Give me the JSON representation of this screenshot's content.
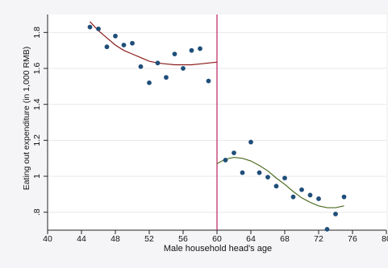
{
  "chart_data": {
    "type": "scatter",
    "title": "",
    "xlabel": "Male household head's age",
    "ylabel": "Eating out expenditure (in 1,000 RMB)",
    "xlim": [
      40,
      80
    ],
    "ylim": [
      0.7,
      1.9
    ],
    "xticks": [
      40,
      44,
      48,
      52,
      56,
      60,
      64,
      68,
      72,
      76,
      80
    ],
    "xtick_labels": [
      "40",
      "44",
      "48",
      "52",
      "56",
      "60",
      "64",
      "68",
      "72",
      "76",
      "80"
    ],
    "yticks": [
      0.8,
      1.0,
      1.2,
      1.4,
      1.6,
      1.8
    ],
    "ytick_labels": [
      ".8",
      "1",
      "1.2",
      "1.4",
      "1.6",
      "1.8"
    ],
    "grid": "horizontal",
    "cutoff": 60,
    "series": [
      {
        "kind": "points",
        "color": "#1f4e79",
        "points": [
          [
            45,
            1.83
          ],
          [
            46,
            1.82
          ],
          [
            47,
            1.72
          ],
          [
            48,
            1.78
          ],
          [
            49,
            1.73
          ],
          [
            50,
            1.74
          ],
          [
            51,
            1.61
          ],
          [
            52,
            1.52
          ],
          [
            53,
            1.63
          ],
          [
            54,
            1.55
          ],
          [
            55,
            1.68
          ],
          [
            56,
            1.6
          ],
          [
            57,
            1.7
          ],
          [
            58,
            1.71
          ],
          [
            59,
            1.53
          ],
          [
            61,
            1.09
          ],
          [
            62,
            1.13
          ],
          [
            63,
            1.02
          ],
          [
            64,
            1.19
          ],
          [
            65,
            1.02
          ],
          [
            66,
            0.995
          ],
          [
            67,
            0.945
          ],
          [
            68,
            0.99
          ],
          [
            69,
            0.885
          ],
          [
            70,
            0.925
          ],
          [
            71,
            0.895
          ],
          [
            72,
            0.875
          ],
          [
            73,
            0.705
          ],
          [
            74,
            0.79
          ],
          [
            75,
            0.885
          ]
        ]
      },
      {
        "kind": "fit",
        "color": "#8b1a1a",
        "points": [
          [
            45,
            1.86
          ],
          [
            46,
            1.81
          ],
          [
            47,
            1.77
          ],
          [
            48,
            1.73
          ],
          [
            49,
            1.7
          ],
          [
            50,
            1.68
          ],
          [
            51,
            1.66
          ],
          [
            52,
            1.64
          ],
          [
            53,
            1.63
          ],
          [
            54,
            1.625
          ],
          [
            55,
            1.62
          ],
          [
            56,
            1.62
          ],
          [
            57,
            1.62
          ],
          [
            58,
            1.625
          ],
          [
            59,
            1.63
          ],
          [
            60,
            1.635
          ]
        ]
      },
      {
        "kind": "fit",
        "color": "#4d6b1f",
        "points": [
          [
            60,
            1.07
          ],
          [
            61,
            1.095
          ],
          [
            62,
            1.105
          ],
          [
            63,
            1.1
          ],
          [
            64,
            1.085
          ],
          [
            65,
            1.06
          ],
          [
            66,
            1.03
          ],
          [
            67,
            0.99
          ],
          [
            68,
            0.955
          ],
          [
            69,
            0.915
          ],
          [
            70,
            0.88
          ],
          [
            71,
            0.855
          ],
          [
            72,
            0.835
          ],
          [
            73,
            0.825
          ],
          [
            74,
            0.825
          ],
          [
            75,
            0.835
          ]
        ]
      }
    ],
    "colors": {
      "plot_background": "#ffffff",
      "page_background": "#f5f5f7",
      "grid": "#e9e9ec",
      "axis": "#222222",
      "cutoff_line": "#c3326b"
    }
  }
}
